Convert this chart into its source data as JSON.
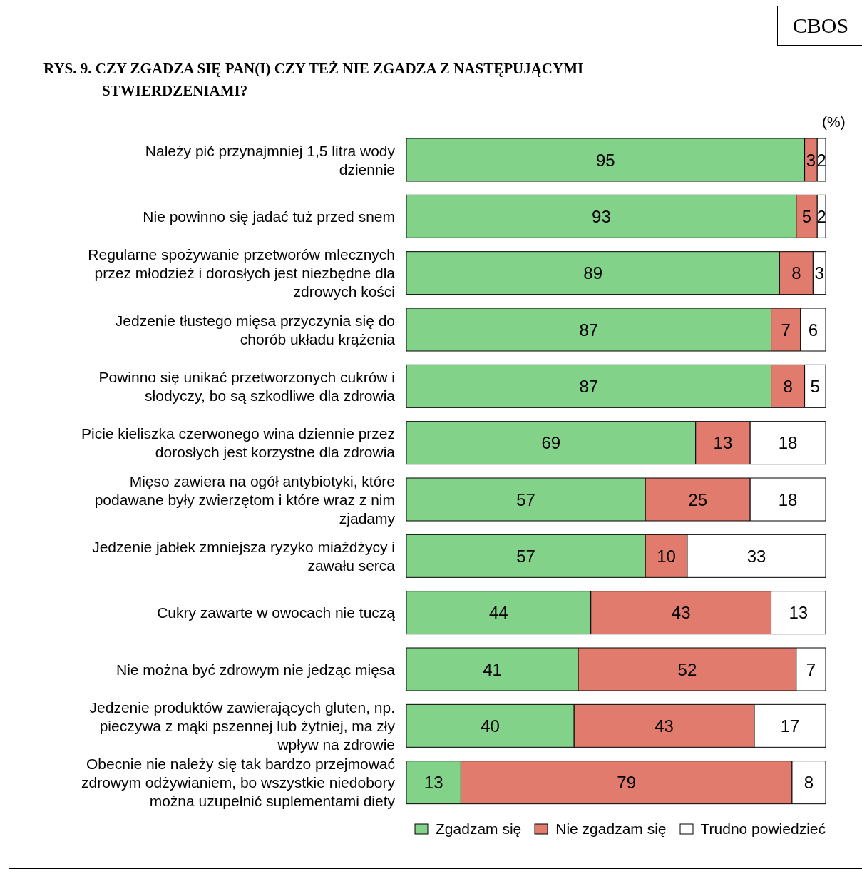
{
  "chart_data": {
    "type": "bar",
    "orientation": "horizontal",
    "stacked": true,
    "data_labels": true,
    "legend": "bottom right",
    "title": "RYS. 9. CZY ZGADZA SIĘ PAN(I) CZY TEŻ NIE ZGADZA Z NASTĘPUJĄCYMI STWIERDZENIAMI?",
    "annotations": [
      "CBOS",
      "(%)"
    ],
    "categories": [
      "Należy pić przynajmniej 1,5 litra wody dziennie",
      "Nie powinno się jadać tuż przed snem",
      "Regularne spożywanie przetworów mlecznych przez młodzież i dorosłych jest niezbędne dla zdrowych kości",
      "Jedzenie tłustego mięsa przyczynia się do chorób układu krążenia",
      "Powinno się unikać przetworzonych cukrów i słodyczy, bo są szkodliwe dla zdrowia",
      "Picie kieliszka czerwonego wina dziennie przez dorosłych jest korzystne dla zdrowia",
      "Mięso zawiera na ogół antybiotyki, które podawane były zwierzętom i które wraz z nim zjadamy",
      "Jedzenie jabłek zmniejsza ryzyko miażdżycy i zawału serca",
      "Cukry zawarte w owocach nie tuczą",
      "Nie można być zdrowym nie jedząc mięsa",
      "Jedzenie produktów zawierających gluten, np. pieczywa z mąki pszennej lub żytniej, ma zły wpływ na zdrowie",
      "Obecnie nie należy się tak bardzo przejmować zdrowym odżywianiem, bo wszystkie niedobory można uzupełnić suplementami diety"
    ],
    "series": [
      {
        "name": "Zgadzam się",
        "color": "#82d28a",
        "values": [
          95,
          93,
          89,
          87,
          87,
          69,
          57,
          57,
          44,
          41,
          40,
          13
        ]
      },
      {
        "name": "Nie zgadzam się",
        "color": "#e07b6e",
        "values": [
          3,
          5,
          8,
          7,
          8,
          13,
          25,
          10,
          43,
          52,
          43,
          79
        ]
      },
      {
        "name": "Trudno powiedzieć",
        "color": "#ffffff",
        "values": [
          2,
          2,
          3,
          6,
          5,
          18,
          18,
          33,
          13,
          7,
          17,
          8
        ]
      }
    ]
  }
}
